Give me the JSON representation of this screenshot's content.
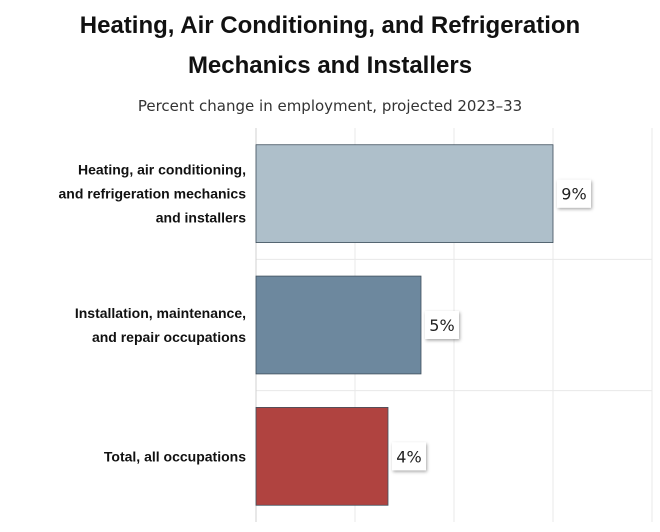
{
  "chart_data": {
    "type": "bar",
    "orientation": "horizontal",
    "title_lines": [
      "Heating, Air Conditioning, and Refrigeration",
      "Mechanics and Installers"
    ],
    "subtitle": "Percent change in employment, projected 2023–33",
    "categories": [
      [
        "Heating, air conditioning,",
        "and refrigeration mechanics",
        "and installers"
      ],
      [
        "Installation, maintenance,",
        "and repair occupations"
      ],
      [
        "Total, all occupations"
      ]
    ],
    "values": [
      9,
      5,
      4
    ],
    "data_labels": [
      "9%",
      "5%",
      "4%"
    ],
    "colors": [
      "#aebfca",
      "#6d889e",
      "#b04340"
    ],
    "xlim": [
      0,
      12
    ],
    "xlabel": "",
    "ylabel": "",
    "grid": true,
    "legend": "none"
  }
}
